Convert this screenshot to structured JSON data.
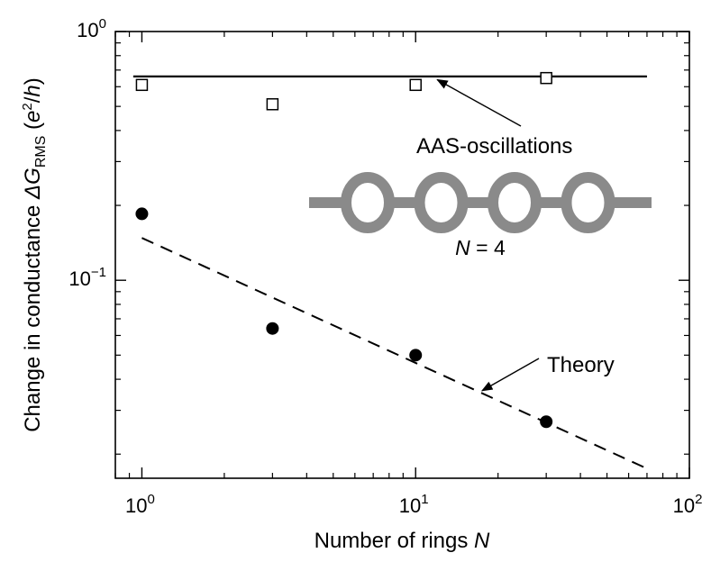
{
  "chart_data": {
    "type": "scatter",
    "xscale": "log",
    "yscale": "log",
    "xlim": [
      0.8,
      100
    ],
    "ylim": [
      0.016,
      1
    ],
    "grid": false,
    "xlabel": {
      "prefix": "Number of rings ",
      "var": "N"
    },
    "ylabel": {
      "prefix": "Change in conductance ",
      "delta": "Δ",
      "var": "G",
      "sub": "RMS",
      "unit_open": " (",
      "e": "e",
      "exp": "2",
      "slash": "/",
      "h": "h",
      "unit_close": ")"
    },
    "xticks": [
      {
        "value": 1,
        "base": "10",
        "exp": "0"
      },
      {
        "value": 10,
        "base": "10",
        "exp": "1"
      },
      {
        "value": 100,
        "base": "10",
        "exp": "2"
      }
    ],
    "yticks": [
      {
        "value": 0.1,
        "base": "10",
        "exp": "−1"
      },
      {
        "value": 1,
        "base": "10",
        "exp": "0"
      }
    ],
    "series": [
      {
        "marker": "open-square",
        "x": [
          1,
          3,
          10,
          30
        ],
        "y": [
          0.61,
          0.51,
          0.61,
          0.65
        ]
      },
      {
        "marker": "filled-circle",
        "x": [
          1,
          3,
          10,
          30
        ],
        "y": [
          0.185,
          0.064,
          0.05,
          0.027
        ]
      }
    ],
    "lines": [
      {
        "style": "solid",
        "x": [
          0.93,
          70
        ],
        "y": [
          0.66,
          0.66
        ]
      },
      {
        "style": "dashed",
        "x": [
          1,
          70
        ],
        "y": [
          0.148,
          0.0175
        ]
      }
    ],
    "annotations": [
      {
        "id": "aas",
        "text": "AAS-oscillations",
        "arrow_to": {
          "x": 12,
          "y": 0.64
        }
      },
      {
        "id": "theory",
        "text": "Theory",
        "arrow_to": {
          "x": 17.5,
          "y": 0.036
        }
      }
    ],
    "inset": {
      "rings": 4,
      "label_var": "N",
      "label_rest": " = 4"
    }
  }
}
